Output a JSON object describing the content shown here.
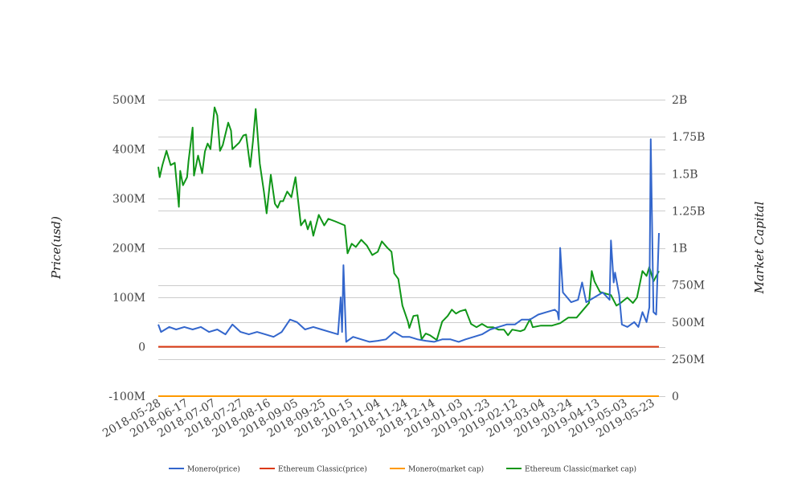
{
  "chart_data": {
    "type": "line",
    "title": "",
    "xlabel": "",
    "ylabel": "Price(usd)",
    "y2label": "Market Capital",
    "x_start_date": "2018-05-28",
    "x_unit": "days since 2018-05-28",
    "xlim": [
      0,
      365
    ],
    "x_tick_labels": [
      "2018-05-28",
      "2018-06-17",
      "2018-07-07",
      "2018-07-27",
      "2018-08-16",
      "2018-09-05",
      "2018-09-25",
      "2018-10-15",
      "2018-11-04",
      "2018-11-24",
      "2018-12-14",
      "2019-01-03",
      "2019-01-23",
      "2019-02-12",
      "2019-03-04",
      "2019-03-24",
      "2019-04-13",
      "2019-05-03",
      "2019-05-23"
    ],
    "ylim": [
      -100000000,
      500000000
    ],
    "y_tick_labels": [
      "-100M",
      "0",
      "100M",
      "200M",
      "300M",
      "400M",
      "500M"
    ],
    "y_ticks": [
      -100000000,
      0,
      100000000,
      200000000,
      300000000,
      400000000,
      500000000
    ],
    "y2lim": [
      0,
      2000000000
    ],
    "y2_tick_labels": [
      "0",
      "250M",
      "500M",
      "750M",
      "1B",
      "1.25B",
      "1.5B",
      "1.75B",
      "2B"
    ],
    "y2_ticks": [
      0,
      250000000,
      500000000,
      750000000,
      1000000000,
      1250000000,
      1500000000,
      1750000000,
      2000000000
    ],
    "grid": true,
    "legend_position": "bottom",
    "series": [
      {
        "name": "Monero(price)",
        "color": "#3366cc",
        "axis": "left",
        "unit": "M",
        "points": [
          [
            0,
            45
          ],
          [
            2,
            30
          ],
          [
            8,
            40
          ],
          [
            13,
            35
          ],
          [
            19,
            40
          ],
          [
            25,
            35
          ],
          [
            31,
            40
          ],
          [
            37,
            30
          ],
          [
            43,
            35
          ],
          [
            49,
            25
          ],
          [
            54,
            45
          ],
          [
            60,
            30
          ],
          [
            66,
            25
          ],
          [
            72,
            30
          ],
          [
            78,
            25
          ],
          [
            84,
            20
          ],
          [
            90,
            30
          ],
          [
            96,
            55
          ],
          [
            101,
            50
          ],
          [
            107,
            35
          ],
          [
            113,
            40
          ],
          [
            119,
            35
          ],
          [
            125,
            30
          ],
          [
            131,
            25
          ],
          [
            133,
            100
          ],
          [
            134,
            30
          ],
          [
            135,
            165
          ],
          [
            137,
            10
          ],
          [
            142,
            20
          ],
          [
            148,
            15
          ],
          [
            154,
            10
          ],
          [
            160,
            12
          ],
          [
            166,
            15
          ],
          [
            172,
            30
          ],
          [
            178,
            20
          ],
          [
            183,
            20
          ],
          [
            189,
            15
          ],
          [
            195,
            12
          ],
          [
            201,
            10
          ],
          [
            207,
            15
          ],
          [
            213,
            15
          ],
          [
            219,
            10
          ],
          [
            224,
            15
          ],
          [
            230,
            20
          ],
          [
            236,
            25
          ],
          [
            242,
            35
          ],
          [
            248,
            40
          ],
          [
            254,
            45
          ],
          [
            260,
            45
          ],
          [
            265,
            55
          ],
          [
            271,
            55
          ],
          [
            277,
            65
          ],
          [
            283,
            70
          ],
          [
            289,
            75
          ],
          [
            291,
            70
          ],
          [
            292,
            55
          ],
          [
            293,
            200
          ],
          [
            295,
            110
          ],
          [
            301,
            90
          ],
          [
            306,
            95
          ],
          [
            309,
            130
          ],
          [
            312,
            90
          ],
          [
            318,
            100
          ],
          [
            324,
            110
          ],
          [
            329,
            95
          ],
          [
            330,
            215
          ],
          [
            332,
            130
          ],
          [
            333,
            150
          ],
          [
            336,
            105
          ],
          [
            338,
            45
          ],
          [
            342,
            40
          ],
          [
            347,
            50
          ],
          [
            350,
            40
          ],
          [
            353,
            70
          ],
          [
            356,
            50
          ],
          [
            358,
            80
          ],
          [
            359,
            420
          ],
          [
            361,
            70
          ],
          [
            363,
            65
          ],
          [
            365,
            230
          ]
        ]
      },
      {
        "name": "Ethereum Classic(price)",
        "color": "#dc3912",
        "axis": "left",
        "unit": "M",
        "points": [
          [
            0,
            0
          ],
          [
            365,
            0
          ]
        ]
      },
      {
        "name": "Monero(market cap)",
        "color": "#ff9900",
        "axis": "right",
        "unit": "M",
        "points": [
          [
            0,
            0
          ],
          [
            365,
            0
          ]
        ]
      },
      {
        "name": "Ethereum Classic(market cap)",
        "color": "#109618",
        "axis": "right",
        "unit": "M",
        "points": [
          [
            0,
            1547
          ],
          [
            1,
            1477
          ],
          [
            3,
            1558
          ],
          [
            6,
            1655
          ],
          [
            9,
            1558
          ],
          [
            12,
            1574
          ],
          [
            15,
            1277
          ],
          [
            16,
            1520
          ],
          [
            18,
            1423
          ],
          [
            21,
            1477
          ],
          [
            22,
            1585
          ],
          [
            25,
            1812
          ],
          [
            26,
            1488
          ],
          [
            29,
            1623
          ],
          [
            32,
            1504
          ],
          [
            34,
            1650
          ],
          [
            36,
            1704
          ],
          [
            38,
            1666
          ],
          [
            41,
            1948
          ],
          [
            43,
            1893
          ],
          [
            45,
            1655
          ],
          [
            47,
            1693
          ],
          [
            51,
            1845
          ],
          [
            53,
            1791
          ],
          [
            54,
            1666
          ],
          [
            59,
            1710
          ],
          [
            62,
            1758
          ],
          [
            64,
            1764
          ],
          [
            67,
            1547
          ],
          [
            69,
            1720
          ],
          [
            71,
            1937
          ],
          [
            74,
            1569
          ],
          [
            77,
            1380
          ],
          [
            79,
            1233
          ],
          [
            82,
            1493
          ],
          [
            85,
            1298
          ],
          [
            87,
            1271
          ],
          [
            89,
            1315
          ],
          [
            91,
            1315
          ],
          [
            94,
            1380
          ],
          [
            97,
            1342
          ],
          [
            100,
            1477
          ],
          [
            103,
            1233
          ],
          [
            104,
            1152
          ],
          [
            107,
            1190
          ],
          [
            109,
            1125
          ],
          [
            111,
            1179
          ],
          [
            113,
            1082
          ],
          [
            117,
            1223
          ],
          [
            121,
            1152
          ],
          [
            124,
            1196
          ],
          [
            129,
            1179
          ],
          [
            136,
            1152
          ],
          [
            138,
            963
          ],
          [
            141,
            1028
          ],
          [
            144,
            1006
          ],
          [
            148,
            1055
          ],
          [
            152,
            1017
          ],
          [
            156,
            952
          ],
          [
            160,
            974
          ],
          [
            163,
            1044
          ],
          [
            167,
            1001
          ],
          [
            170,
            974
          ],
          [
            172,
            828
          ],
          [
            175,
            790
          ],
          [
            178,
            611
          ],
          [
            180,
            557
          ],
          [
            182,
            503
          ],
          [
            183,
            460
          ],
          [
            186,
            541
          ],
          [
            189,
            546
          ],
          [
            192,
            384
          ],
          [
            195,
            422
          ],
          [
            198,
            411
          ],
          [
            203,
            379
          ],
          [
            207,
            503
          ],
          [
            211,
            541
          ],
          [
            214,
            584
          ],
          [
            217,
            557
          ],
          [
            220,
            573
          ],
          [
            224,
            584
          ],
          [
            228,
            487
          ],
          [
            232,
            465
          ],
          [
            236,
            487
          ],
          [
            240,
            465
          ],
          [
            244,
            465
          ],
          [
            248,
            449
          ],
          [
            252,
            449
          ],
          [
            255,
            411
          ],
          [
            258,
            449
          ],
          [
            264,
            438
          ],
          [
            267,
            449
          ],
          [
            271,
            519
          ],
          [
            273,
            465
          ],
          [
            279,
            476
          ],
          [
            287,
            476
          ],
          [
            293,
            492
          ],
          [
            299,
            530
          ],
          [
            305,
            530
          ],
          [
            311,
            595
          ],
          [
            314,
            628
          ],
          [
            316,
            844
          ],
          [
            318,
            774
          ],
          [
            322,
            703
          ],
          [
            326,
            692
          ],
          [
            330,
            682
          ],
          [
            334,
            611
          ],
          [
            337,
            628
          ],
          [
            342,
            665
          ],
          [
            346,
            628
          ],
          [
            349,
            665
          ],
          [
            353,
            844
          ],
          [
            356,
            811
          ],
          [
            358,
            871
          ],
          [
            361,
            774
          ],
          [
            365,
            844
          ]
        ]
      }
    ]
  }
}
